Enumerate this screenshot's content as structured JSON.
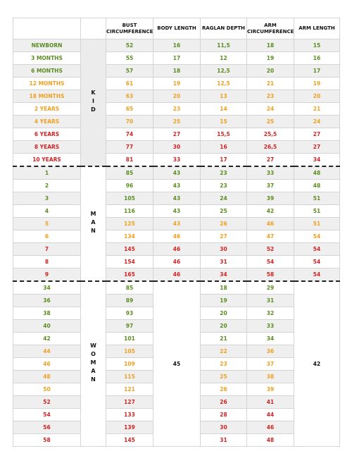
{
  "table": {
    "headers": [
      "BUST CIRCUMFERENCE",
      "BODY LENGTH",
      "RAGLAN DEPTH",
      "ARM CIRCUMFERENCE",
      "ARM LENGTH"
    ],
    "groups": [
      {
        "label": "KID",
        "background": "#ececec",
        "rows": [
          {
            "color": "#5b8c1f",
            "cells": [
              "NEWBORN",
              52,
              16,
              "11,5",
              18,
              15
            ]
          },
          {
            "color": "#5b8c1f",
            "cells": [
              "3 MONTHS",
              55,
              17,
              12,
              19,
              16
            ]
          },
          {
            "color": "#5b8c1f",
            "cells": [
              "6 MONTHS",
              57,
              18,
              "12,5",
              20,
              17
            ]
          },
          {
            "color": "#f0a020",
            "cells": [
              "12 MONTHS",
              61,
              19,
              "12,5",
              21,
              19
            ]
          },
          {
            "color": "#f0a020",
            "cells": [
              "18 MONTHS",
              63,
              20,
              13,
              23,
              20
            ]
          },
          {
            "color": "#f0a020",
            "cells": [
              "2 YEARS",
              65,
              23,
              14,
              24,
              21
            ]
          },
          {
            "color": "#f0a020",
            "cells": [
              "4 YEARS",
              70,
              25,
              15,
              25,
              24
            ]
          },
          {
            "color": "#d42222",
            "cells": [
              "6 YEARS",
              74,
              27,
              "15,5",
              "25,5",
              27
            ]
          },
          {
            "color": "#d42222",
            "cells": [
              "8 YEARS",
              77,
              30,
              16,
              "26,5",
              27
            ]
          },
          {
            "color": "#d42222",
            "cells": [
              "10 YEARS",
              81,
              33,
              17,
              27,
              34
            ]
          }
        ]
      },
      {
        "label": "MAN",
        "background": "#ffffff",
        "rows": [
          {
            "color": "#5b8c1f",
            "cells": [
              1,
              85,
              43,
              23,
              33,
              48
            ]
          },
          {
            "color": "#5b8c1f",
            "cells": [
              2,
              96,
              43,
              23,
              37,
              48
            ]
          },
          {
            "color": "#5b8c1f",
            "cells": [
              3,
              105,
              43,
              24,
              39,
              51
            ]
          },
          {
            "color": "#5b8c1f",
            "cells": [
              4,
              116,
              43,
              25,
              42,
              51
            ]
          },
          {
            "color": "#f0a020",
            "cells": [
              5,
              125,
              43,
              26,
              46,
              51
            ]
          },
          {
            "color": "#f0a020",
            "cells": [
              6,
              134,
              46,
              27,
              47,
              54
            ]
          },
          {
            "color": "#d42222",
            "cells": [
              7,
              145,
              46,
              30,
              52,
              54
            ]
          },
          {
            "color": "#d42222",
            "cells": [
              8,
              154,
              46,
              31,
              54,
              54
            ]
          },
          {
            "color": "#d42222",
            "cells": [
              9,
              165,
              46,
              34,
              58,
              54
            ]
          }
        ]
      },
      {
        "label": "WOMAN",
        "background": "#ffffff",
        "shared": [
          45,
          42
        ],
        "rows": [
          {
            "color": "#5b8c1f",
            "cells": [
              34,
              85,
              18,
              29
            ]
          },
          {
            "color": "#5b8c1f",
            "cells": [
              36,
              89,
              19,
              31
            ]
          },
          {
            "color": "#5b8c1f",
            "cells": [
              38,
              93,
              20,
              32
            ]
          },
          {
            "color": "#5b8c1f",
            "cells": [
              40,
              97,
              20,
              33
            ]
          },
          {
            "color": "#5b8c1f",
            "cells": [
              42,
              101,
              21,
              34
            ]
          },
          {
            "color": "#f0a020",
            "cells": [
              44,
              105,
              22,
              36
            ]
          },
          {
            "color": "#f0a020",
            "cells": [
              46,
              109,
              23,
              37
            ]
          },
          {
            "color": "#f0a020",
            "cells": [
              48,
              115,
              25,
              38
            ]
          },
          {
            "color": "#f0a020",
            "cells": [
              50,
              121,
              26,
              39
            ]
          },
          {
            "color": "#d42222",
            "cells": [
              52,
              127,
              26,
              41
            ]
          },
          {
            "color": "#d42222",
            "cells": [
              54,
              133,
              28,
              44
            ]
          },
          {
            "color": "#d42222",
            "cells": [
              56,
              139,
              30,
              46
            ]
          },
          {
            "color": "#d42222",
            "cells": [
              58,
              145,
              31,
              48
            ]
          }
        ]
      }
    ]
  }
}
